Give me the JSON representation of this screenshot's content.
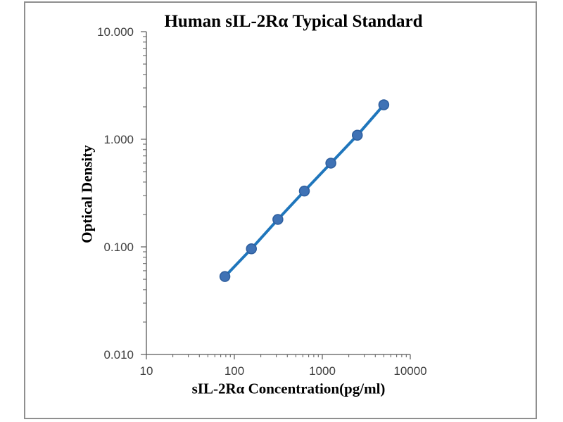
{
  "window": {
    "background": "#ffffff",
    "frame_border_color": "#8f8f8f"
  },
  "chart_data": {
    "type": "line",
    "title": "Human sIL-2Rα Typical Standard",
    "xlabel": "sIL-2Rα Concentration(pg/ml)",
    "ylabel": "Optical Density",
    "x_scale": "log",
    "y_scale": "log",
    "xlim": [
      10,
      10000
    ],
    "ylim": [
      0.01,
      10
    ],
    "grid": false,
    "legend": false,
    "x_ticks": [
      {
        "value": 10,
        "label": "10"
      },
      {
        "value": 100,
        "label": "100"
      },
      {
        "value": 1000,
        "label": "1000"
      },
      {
        "value": 10000,
        "label": "10000"
      }
    ],
    "y_ticks": [
      {
        "value": 10,
        "label": "10.000"
      },
      {
        "value": 1,
        "label": "1.000"
      },
      {
        "value": 0.1,
        "label": "0.100"
      },
      {
        "value": 0.01,
        "label": "0.010"
      }
    ],
    "series": [
      {
        "name": "Human sIL-2Rα Typical Standard",
        "x": [
          78.1,
          156.3,
          312.5,
          625,
          1250,
          2500,
          5000
        ],
        "y": [
          0.053,
          0.096,
          0.18,
          0.33,
          0.6,
          1.09,
          2.09
        ]
      }
    ],
    "colors": {
      "line": "#1F76BC",
      "marker_fill": "#3F72B5",
      "marker_stroke": "#2E5E9E",
      "axis": "#595959",
      "tick_label": "#3F3F3F",
      "label_text": "#000000"
    }
  }
}
